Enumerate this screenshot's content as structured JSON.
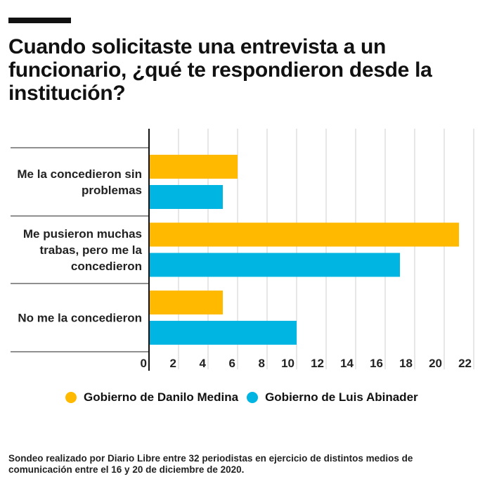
{
  "header": {
    "title": "Cuando solicitaste una entrevista a un funcionario, ¿qué te respondieron desde la institución?"
  },
  "chart_data": {
    "type": "bar",
    "orientation": "horizontal",
    "title": "Cuando solicitaste una entrevista a un funcionario, ¿qué te respondieron desde la institución?",
    "categories": [
      [
        "Me la concedieron sin",
        "problemas"
      ],
      [
        "Me pusieron muchas",
        "trabas, pero me la",
        "concedieron"
      ],
      [
        "No me la concedieron"
      ]
    ],
    "series": [
      {
        "name": "Gobierno de Danilo Medina",
        "color": "#FFBA00",
        "values": [
          6,
          21,
          5
        ]
      },
      {
        "name": "Gobierno de Luis Abinader",
        "color": "#00B5E2",
        "values": [
          5,
          17,
          10
        ]
      }
    ],
    "xlim": [
      0,
      22
    ],
    "xticks": [
      "0",
      "2",
      "4",
      "6",
      "8",
      "10",
      "12",
      "14",
      "16",
      "18",
      "20",
      "22"
    ],
    "grid": true,
    "legend": "bottom"
  },
  "footer": {
    "note": "Sondeo realizado por Diario Libre entre 32 periodistas en ejercicio de distintos medios de comunicación entre el 16 y 20 de diciembre de 2020."
  }
}
